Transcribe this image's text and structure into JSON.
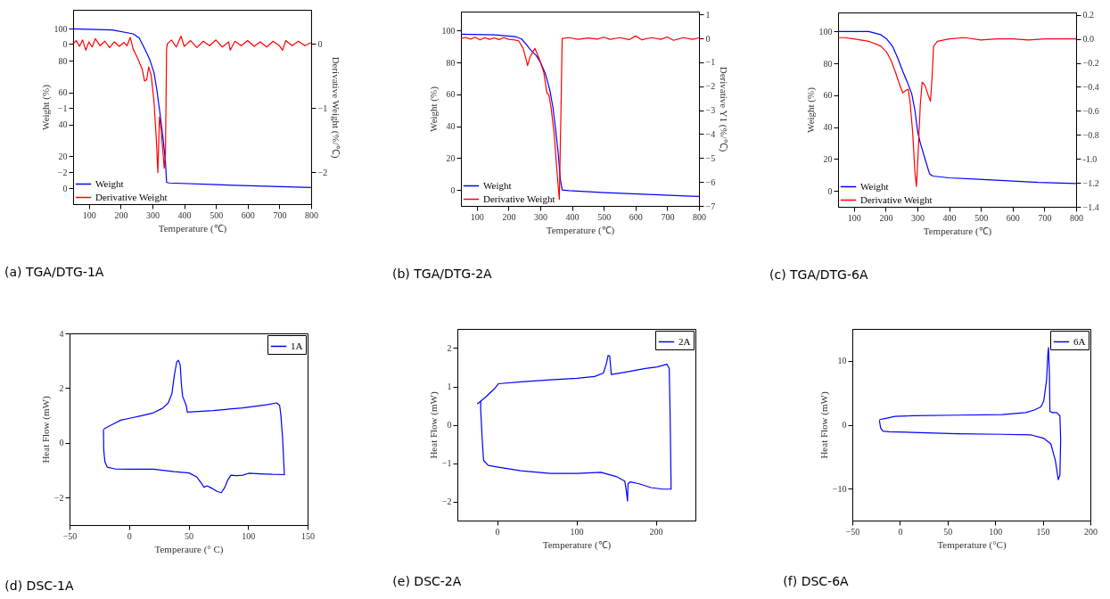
{
  "chart_data": [
    {
      "type": "line",
      "title": "(a) TGA/DTG-1A",
      "xlabel": "Temperature (℃)",
      "ylabel": "Weight (%)",
      "y2label": "Derivative Weight (%/℃)",
      "xlim": [
        50,
        800
      ],
      "xticks": [
        100,
        200,
        300,
        400,
        500,
        600,
        700,
        800
      ],
      "ylim": [
        -10,
        112
      ],
      "yticks": [
        0,
        20,
        40,
        60,
        80,
        100
      ],
      "y2lim": [
        -2.5,
        0.53
      ],
      "y2ticks": [
        -2,
        -1,
        0
      ],
      "y3lim": [
        -2.5,
        0.53
      ],
      "y3ticks": [
        -2,
        -1,
        0
      ],
      "legend": "bottom left",
      "series": [
        {
          "name": "Weight",
          "color": "#0000ff",
          "x": [
            50,
            174,
            239,
            258,
            277,
            291,
            305,
            314,
            324,
            333,
            341,
            344.5,
            352,
            502,
            800
          ],
          "values": [
            100,
            99.3,
            96.9,
            94.4,
            87,
            81,
            72.5,
            61.5,
            46.5,
            31.8,
            16.4,
            3.7,
            3.3,
            2.2,
            0.4
          ]
        },
        {
          "name": "Derivative Weight",
          "color": "#ff0000",
          "axis": "y2",
          "x": [
            50,
            60,
            70,
            80,
            90,
            100,
            110,
            120,
            135,
            150,
            165,
            180,
            195,
            210,
            220,
            230,
            239,
            253,
            268,
            275,
            282,
            288,
            296,
            305,
            312,
            317,
            322,
            327,
            331,
            337,
            341,
            344.5,
            347,
            360,
            375,
            390,
            400,
            420,
            440,
            460,
            480,
            500,
            520,
            540,
            545,
            560,
            580,
            600,
            620,
            640,
            660,
            680,
            700,
            710,
            720,
            740,
            760,
            780,
            800
          ],
          "values": [
            0,
            0.05,
            -0.04,
            0.06,
            -0.1,
            0.03,
            -0.05,
            0.08,
            -0.03,
            0.04,
            -0.06,
            0.03,
            -0.04,
            0.02,
            -0.03,
            0.1,
            -0.08,
            -0.22,
            -0.4,
            -0.58,
            -0.56,
            -0.36,
            -0.49,
            -0.91,
            -1.47,
            -2.01,
            -1.14,
            -1.33,
            -1.56,
            -1.94,
            -1.71,
            -0.08,
            0,
            0.06,
            -0.05,
            0.12,
            -0.04,
            0.05,
            -0.06,
            0.04,
            -0.03,
            0.06,
            -0.05,
            0.03,
            -0.1,
            0.04,
            -0.03,
            0.05,
            -0.04,
            0.03,
            -0.05,
            0.04,
            -0.03,
            -0.1,
            0.05,
            -0.03,
            0.04,
            -0.03,
            0.02
          ]
        }
      ]
    },
    {
      "type": "line",
      "title": "(b) TGA/DTG-2A",
      "xlabel": "Temperature (℃)",
      "ylabel": "Weight (%)",
      "y2label": "Derivative Y1 (%/℃)",
      "xlim": [
        50,
        800
      ],
      "xticks": [
        100,
        200,
        300,
        400,
        500,
        600,
        700,
        800
      ],
      "ylim": [
        -10,
        112
      ],
      "yticks": [
        0,
        20,
        40,
        60,
        80,
        100
      ],
      "y2lim": [
        -7,
        1.12
      ],
      "y2ticks": [
        -7,
        -6,
        -5,
        -4,
        -3,
        -2,
        -1,
        0,
        1
      ],
      "legend": "bottom left",
      "series": [
        {
          "name": "Weight",
          "color": "#0000ff",
          "x": [
            50,
            157,
            222,
            241,
            255,
            269,
            288,
            302,
            316,
            330,
            340,
            349,
            357,
            363,
            369,
            391,
            504,
            800
          ],
          "values": [
            97.8,
            97.4,
            96.3,
            94.8,
            91.6,
            88,
            84.2,
            79.6,
            73,
            62.8,
            51.7,
            36.8,
            21.9,
            7,
            0,
            -0.4,
            -1.7,
            -4.1
          ]
        },
        {
          "name": "Derivative Weight",
          "color": "#ff0000",
          "axis": "y2",
          "x": [
            50,
            65,
            80,
            95,
            110,
            125,
            140,
            155,
            170,
            185,
            200,
            215,
            232,
            246,
            255,
            260,
            267,
            277,
            283,
            297,
            311,
            321,
            327,
            334,
            344,
            353,
            360,
            366,
            369,
            390,
            420,
            450,
            480,
            500,
            520,
            550,
            580,
            600,
            620,
            650,
            680,
            700,
            720,
            750,
            780,
            800
          ],
          "values": [
            0,
            0.04,
            -0.03,
            0.05,
            -0.06,
            0.03,
            -0.04,
            0.02,
            -0.05,
            0.03,
            -0.04,
            -0.06,
            -0.1,
            -0.42,
            -0.86,
            -1.14,
            -0.8,
            -0.55,
            -0.42,
            -0.86,
            -1.42,
            -2.29,
            -2.35,
            -2.9,
            -4.02,
            -5.64,
            -6.73,
            -2.41,
            0,
            0.03,
            -0.04,
            0.02,
            -0.03,
            0.05,
            -0.04,
            0.03,
            -0.05,
            0.1,
            -0.06,
            0.03,
            -0.04,
            0.06,
            -0.08,
            0.03,
            -0.04,
            0.02
          ]
        }
      ]
    },
    {
      "type": "line",
      "title": "(c) TGA/DTG-6A",
      "xlabel": "Temperature (℃)",
      "ylabel": "Weight (%)",
      "xlim": [
        50,
        800
      ],
      "xticks": [
        100,
        200,
        300,
        400,
        500,
        600,
        700,
        800
      ],
      "ylim": [
        -10,
        112
      ],
      "yticks": [
        0,
        20,
        40,
        60,
        80,
        100
      ],
      "y2lim": [
        -1.4,
        0.22
      ],
      "y2ticks": [
        -1.4,
        -1.2,
        {
          "value": -1,
          "label": "-1.0"
        },
        -0.8,
        -0.6,
        -0.4,
        -0.2,
        {
          "value": 0,
          "label": "0.0"
        },
        0.2
      ],
      "legend": "bottom left",
      "series": [
        {
          "name": "Weight",
          "color": "#0000ff",
          "x": [
            50,
            147,
            184,
            203,
            222,
            240,
            254,
            268,
            282,
            292,
            301,
            310,
            324,
            338,
            348,
            399,
            493,
            587,
            680,
            800
          ],
          "values": [
            100,
            100,
            98.1,
            95.4,
            90.7,
            82.3,
            74.9,
            68.4,
            61,
            50.7,
            36.8,
            29.4,
            20.1,
            10.8,
            9.3,
            8.2,
            7.3,
            6.3,
            5.3,
            4.6
          ]
        },
        {
          "name": "Derivative Weight",
          "color": "#ff0000",
          "axis": "y2",
          "x": [
            50,
            70,
            100,
            147,
            184,
            203,
            217,
            231,
            245,
            254,
            263,
            271,
            277,
            285,
            292,
            297,
            302,
            309,
            315,
            324,
            334,
            341,
            346,
            351,
            363,
            400,
            450,
            500,
            550,
            600,
            650,
            700,
            750,
            800
          ],
          "values": [
            0.01,
            0.01,
            0,
            -0.02,
            -0.06,
            -0.11,
            -0.18,
            -0.28,
            -0.39,
            -0.45,
            -0.43,
            -0.42,
            -0.53,
            -0.78,
            -1.11,
            -1.23,
            -0.97,
            -0.55,
            -0.36,
            -0.39,
            -0.47,
            -0.52,
            -0.33,
            -0.06,
            -0.02,
            0,
            0.01,
            -0.01,
            0,
            0,
            -0.01,
            0,
            0,
            0
          ]
        }
      ]
    },
    {
      "type": "line",
      "title": "(d) DSC-1A",
      "xlabel": "Temperaure (° C)",
      "ylabel": "Heat Flow (mW)",
      "xlim": [
        -50,
        150
      ],
      "xticks": [
        -50,
        0,
        50,
        100,
        150
      ],
      "ylim": [
        -3,
        4
      ],
      "yticks": [
        -2,
        0,
        2,
        4
      ],
      "legend": "top right",
      "series": [
        {
          "name": "1A",
          "color": "#0000ff",
          "x": [
            -21.5,
            -14.5,
            -7,
            0.5,
            10.5,
            20.5,
            28,
            33,
            36,
            38,
            40,
            41.5,
            43,
            44,
            45,
            48,
            49,
            70.5,
            95.5,
            115.5,
            124,
            126.5,
            127.5,
            129,
            130.5,
            120.5,
            110.5,
            100.5,
            95.5,
            90.5,
            85.5,
            83,
            80.5,
            77.5,
            74.25,
            68,
            65.5,
            63,
            60.5,
            56.75,
            50.5,
            38,
            20.5,
            3,
            -12,
            -18.25,
            -20.25,
            -21.25,
            -21.5
          ],
          "values": [
            0.5,
            0.66,
            0.83,
            0.9,
            0.99,
            1.1,
            1.26,
            1.46,
            1.8,
            2.46,
            2.95,
            3.02,
            2.84,
            2.13,
            1.7,
            1.37,
            1.12,
            1.18,
            1.28,
            1.39,
            1.46,
            1.37,
            1.04,
            0.17,
            -1.16,
            -1.15,
            -1.13,
            -1.11,
            -1.18,
            -1.2,
            -1.18,
            -1.35,
            -1.62,
            -1.82,
            -1.78,
            -1.62,
            -1.57,
            -1.62,
            -1.46,
            -1.24,
            -1.1,
            -1.05,
            -0.96,
            -0.96,
            -0.95,
            -0.89,
            -0.7,
            -0.26,
            0.48
          ]
        }
      ]
    },
    {
      "type": "line",
      "title": "(e) DSC-2A",
      "xlabel": "Temperature (℃)",
      "ylabel": "Heat Flow (mW)",
      "xlim": [
        -50,
        250
      ],
      "xticks": [
        0,
        100,
        200
      ],
      "ylim": [
        -2.5,
        2.5
      ],
      "yticks": [
        -2,
        -1,
        0,
        1,
        2
      ],
      "legend": "top right",
      "series": [
        {
          "name": "2A",
          "color": "#0000ff",
          "x": [
            -25,
            -15,
            -3.7,
            1.9,
            30,
            67,
            101,
            123,
            134,
            137.6,
            140,
            142,
            144,
            161,
            187,
            202,
            214,
            217,
            218,
            219.4,
            209,
            194,
            179,
            168,
            165,
            164.5,
            163,
            161,
            150,
            131,
            101,
            67,
            30,
            0,
            -11,
            -17,
            -18.7,
            -20.6,
            -20.6
          ],
          "values": [
            0.54,
            0.71,
            0.93,
            1.07,
            1.12,
            1.17,
            1.21,
            1.26,
            1.35,
            1.58,
            1.81,
            1.79,
            1.31,
            1.37,
            1.47,
            1.51,
            1.58,
            1.47,
            0.39,
            -1.68,
            -1.68,
            -1.64,
            -1.54,
            -1.49,
            -1.54,
            -1.99,
            -1.74,
            -1.47,
            -1.35,
            -1.24,
            -1.27,
            -1.27,
            -1.2,
            -1.1,
            -1.06,
            -0.93,
            -0.39,
            0.39,
            0.63
          ]
        }
      ]
    },
    {
      "type": "line",
      "title": "(f) DSC-6A",
      "xlabel": "Temperature (°C)",
      "ylabel": "Heat Flow (mW)",
      "xlim": [
        -50,
        200
      ],
      "xticks": [
        -50,
        0,
        50,
        100,
        150,
        200
      ],
      "ylim": [
        -15,
        15
      ],
      "yticks": [
        -10,
        0,
        10
      ],
      "legend": "top right",
      "series": [
        {
          "name": "6A",
          "color": "#0000ff",
          "x": [
            -21.6,
            -14.7,
            -5.4,
            13.4,
            60,
            107,
            132,
            141,
            148,
            151,
            154,
            155.4,
            156,
            157,
            157.5,
            160,
            164.7,
            168,
            168.8,
            168,
            166.3,
            163.2,
            158.5,
            150.7,
            138,
            107,
            60,
            13.4,
            -11.6,
            -17.9,
            -20.3,
            -21.6
          ],
          "values": [
            0.8,
            1,
            1.3,
            1.4,
            1.5,
            1.6,
            1.9,
            2.3,
            2.8,
            3.7,
            7,
            11.2,
            12.1,
            7.9,
            2.1,
            1.9,
            1.9,
            1.4,
            -2.3,
            -7.9,
            -8.6,
            -5.6,
            -3,
            -2.1,
            -1.6,
            -1.5,
            -1.4,
            -1.2,
            -1.1,
            -1,
            -0.5,
            0.7
          ]
        }
      ]
    }
  ]
}
